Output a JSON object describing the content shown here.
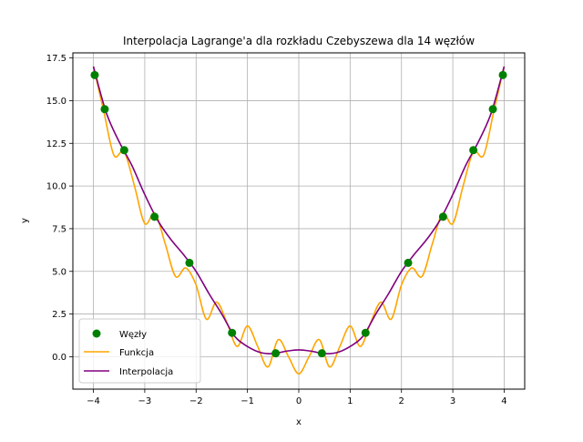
{
  "chart_data": {
    "type": "line",
    "title": "Interpolacja Lagrange'a dla rozkładu Czebyszewa dla 14 węzłów",
    "xlabel": "x",
    "ylabel": "y",
    "xlim": [
      -4.4,
      4.4
    ],
    "ylim": [
      -1.9,
      17.8
    ],
    "grid": true,
    "legend_position": "lower-left",
    "x_ticks": [
      -4,
      -3,
      -2,
      -1,
      0,
      1,
      2,
      3,
      4
    ],
    "y_ticks": [
      0.0,
      2.5,
      5.0,
      7.5,
      10.0,
      12.5,
      15.0,
      17.5
    ],
    "x_tick_labels": [
      "−4",
      "−3",
      "−2",
      "−1",
      "0",
      "1",
      "2",
      "3",
      "4"
    ],
    "y_tick_labels": [
      "0.0",
      "2.5",
      "5.0",
      "7.5",
      "10.0",
      "12.5",
      "15.0",
      "17.5"
    ],
    "legend": [
      "Węzły",
      "Funkcja",
      "Interpolacja"
    ],
    "colors": {
      "nodes": "#008000",
      "function": "#ffa500",
      "interpolation": "#800080",
      "grid": "#b0b0b0"
    },
    "series": [
      {
        "name": "Węzły",
        "kind": "scatter",
        "x": [
          -3.975,
          -3.78,
          -3.4,
          -2.81,
          -2.13,
          -1.3,
          -0.45,
          0.45,
          1.3,
          2.13,
          2.81,
          3.4,
          3.78,
          3.975
        ],
        "y": [
          16.5,
          14.5,
          12.1,
          8.2,
          5.5,
          1.4,
          0.2,
          0.2,
          1.4,
          5.5,
          8.2,
          12.1,
          14.5,
          16.5
        ]
      },
      {
        "name": "Funkcja",
        "kind": "line",
        "x": [
          -4.0,
          -3.8,
          -3.6,
          -3.4,
          -3.2,
          -3.0,
          -2.8,
          -2.6,
          -2.4,
          -2.2,
          -2.0,
          -1.8,
          -1.6,
          -1.4,
          -1.2,
          -1.0,
          -0.8,
          -0.6,
          -0.4,
          -0.2,
          0.0,
          0.2,
          0.4,
          0.6,
          0.8,
          1.0,
          1.2,
          1.4,
          1.6,
          1.8,
          2.0,
          2.2,
          2.4,
          2.6,
          2.8,
          3.0,
          3.2,
          3.4,
          3.6,
          3.8,
          4.0
        ],
        "y": [
          17.0,
          14.4,
          11.8,
          12.0,
          10.0,
          7.8,
          8.4,
          6.6,
          4.7,
          5.2,
          4.2,
          2.2,
          3.2,
          2.0,
          0.6,
          1.8,
          0.6,
          -0.6,
          1.0,
          0.0,
          -1.0,
          0.0,
          1.0,
          -0.6,
          0.6,
          1.8,
          0.6,
          2.0,
          3.2,
          2.2,
          4.2,
          5.2,
          4.7,
          6.6,
          8.4,
          7.8,
          10.0,
          12.0,
          11.8,
          14.4,
          17.0
        ]
      },
      {
        "name": "Interpolacja",
        "kind": "line",
        "x": [
          -4.0,
          -3.75,
          -3.5,
          -3.25,
          -3.0,
          -2.75,
          -2.5,
          -2.25,
          -2.0,
          -1.75,
          -1.5,
          -1.25,
          -1.0,
          -0.75,
          -0.5,
          -0.25,
          0.0,
          0.25,
          0.5,
          0.75,
          1.0,
          1.25,
          1.5,
          1.75,
          2.0,
          2.25,
          2.5,
          2.75,
          3.0,
          3.25,
          3.5,
          3.75,
          4.0
        ],
        "y": [
          17.0,
          14.3,
          12.6,
          11.2,
          9.5,
          8.0,
          6.9,
          6.0,
          5.0,
          3.7,
          2.5,
          1.2,
          0.6,
          0.25,
          0.18,
          0.32,
          0.4,
          0.32,
          0.18,
          0.25,
          0.6,
          1.2,
          2.5,
          3.7,
          5.0,
          6.0,
          6.9,
          8.0,
          9.5,
          11.2,
          12.6,
          14.3,
          17.0
        ]
      }
    ]
  }
}
